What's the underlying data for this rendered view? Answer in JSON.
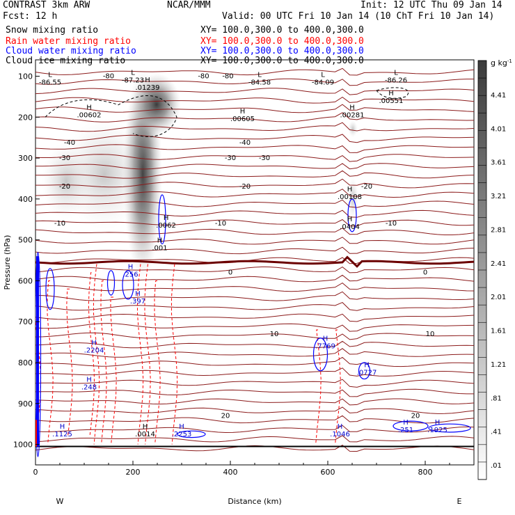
{
  "header": {
    "title": "CONTRAST  3km ARW",
    "center": "NCAR/MMM",
    "init": "Init: 12 UTC Thu 09 Jan 14",
    "fcst": "Fcst:    12 h",
    "valid": "Valid: 00 UTC Fri 10 Jan 14 (10 ChT Fri 10 Jan 14)"
  },
  "legend": [
    {
      "label": "Snow mixing ratio",
      "xy": "XY= 100.0,300.0 to 400.0,300.0",
      "color": "#000000"
    },
    {
      "label": "Rain water mixing ratio",
      "xy": "XY= 100.0,300.0 to 400.0,300.0",
      "color": "#ff0000"
    },
    {
      "label": "Cloud water mixing ratio",
      "xy": "XY= 100.0,300.0 to 400.0,300.0",
      "color": "#0000ff"
    },
    {
      "label": "Cloud ice mixing ratio",
      "xy": "XY= 100.0,300.0 to 400.0,300.0",
      "color": "#000000"
    }
  ],
  "colorbar": {
    "unit": "g kg",
    "unit_sup": "-1",
    "labels": [
      "4.41",
      "4.01",
      "3.61",
      "3.21",
      "2.81",
      "2.41",
      "2.01",
      "1.61",
      "1.21",
      ".81",
      ".41",
      ".01"
    ]
  },
  "chart_data": {
    "type": "cross-section contour",
    "title": "Snow / rain water / cloud water / cloud ice mixing ratio cross section",
    "xlabel": "Distance (km)",
    "ylabel": "Pressure (hPa)",
    "xlim": [
      0,
      900
    ],
    "ylim": [
      1050,
      60
    ],
    "x_ticks": [
      0,
      200,
      400,
      600,
      800
    ],
    "y_ticks": [
      100,
      200,
      300,
      400,
      500,
      600,
      700,
      800,
      900,
      1000
    ],
    "direction_labels": {
      "left": "W",
      "right": "E"
    },
    "temperature_contours": [
      {
        "label": "-80",
        "p": 100,
        "label_x": [
          150,
          345,
          395
        ]
      },
      {
        "label": "-40",
        "p": 262,
        "label_x": [
          70,
          430
        ]
      },
      {
        "label": "-30",
        "p": 300,
        "label_x": [
          60,
          400,
          470
        ]
      },
      {
        "label": "-20",
        "p": 370,
        "label_x": [
          60,
          430,
          680
        ]
      },
      {
        "label": "-10",
        "p": 460,
        "label_x": [
          50,
          380,
          730
        ]
      },
      {
        "label": "0",
        "p": 580,
        "label_x": [
          400,
          800
        ]
      },
      {
        "label": "10",
        "p": 730,
        "label_x": [
          490,
          810
        ]
      },
      {
        "label": "20",
        "p": 930,
        "label_x": [
          390,
          780
        ]
      }
    ],
    "maxima_labels": [
      {
        "text": ".00602",
        "x": 110,
        "p": 195
      },
      {
        "text": ".01239",
        "x": 230,
        "p": 128
      },
      {
        "text": ".00605",
        "x": 425,
        "p": 205
      },
      {
        "text": ".00281",
        "x": 650,
        "p": 195
      },
      {
        "text": ".00551",
        "x": 730,
        "p": 160
      },
      {
        "text": ".00108",
        "x": 645,
        "p": 395
      },
      {
        "text": ".0404",
        "x": 645,
        "p": 468
      },
      {
        "text": ".0062",
        "x": 268,
        "p": 465
      },
      {
        "text": ".001",
        "x": 255,
        "p": 520
      },
      {
        "text": ".256",
        "x": 195,
        "p": 585
      },
      {
        "text": ".397",
        "x": 210,
        "p": 650
      },
      {
        "text": ".2204",
        "x": 120,
        "p": 770
      },
      {
        "text": ".248",
        "x": 110,
        "p": 860
      },
      {
        "text": ".7769",
        "x": 595,
        "p": 760
      },
      {
        "text": ".0727",
        "x": 680,
        "p": 825
      },
      {
        "text": ".1125",
        "x": 55,
        "p": 975
      },
      {
        "text": ".0014",
        "x": 225,
        "p": 975
      },
      {
        "text": ".2253",
        "x": 300,
        "p": 975
      },
      {
        "text": ".1046",
        "x": 625,
        "p": 975
      },
      {
        "text": ".251",
        "x": 760,
        "p": 965
      },
      {
        "text": ".1925",
        "x": 825,
        "p": 965
      }
    ],
    "minima_labels": [
      {
        "text": "-86.55",
        "x": 30,
        "p": 115
      },
      {
        "text": "-87.23",
        "x": 200,
        "p": 110
      },
      {
        "text": "-84.58",
        "x": 460,
        "p": 115
      },
      {
        "text": "-84.09",
        "x": 590,
        "p": 115
      },
      {
        "text": "-86.26",
        "x": 740,
        "p": 110
      }
    ]
  }
}
